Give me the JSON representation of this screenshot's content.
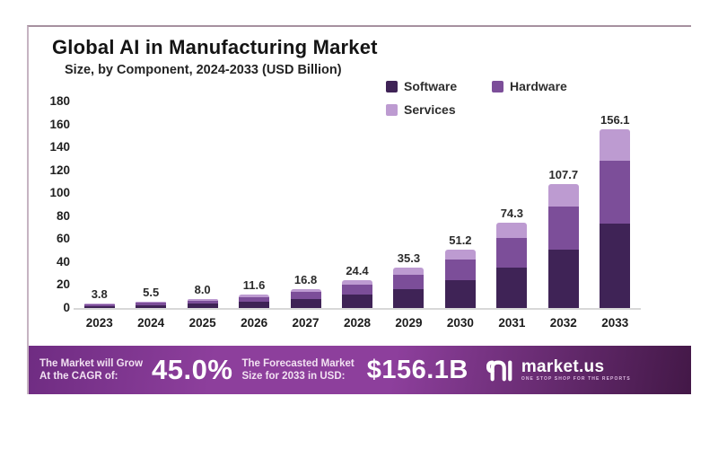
{
  "card": {
    "title": "Global AI in Manufacturing Market",
    "subtitle": "Size, by Component, 2024-2033 (USD Billion)"
  },
  "legend": [
    {
      "label": "Software",
      "color": "#3f2356"
    },
    {
      "label": "Hardware",
      "color": "#7c4e99"
    },
    {
      "label": "Services",
      "color": "#bd9bd1"
    }
  ],
  "chart_data": {
    "type": "bar",
    "stacked": true,
    "title": "Global AI in Manufacturing Market",
    "subtitle": "Size, by Component, 2024-2033 (USD Billion)",
    "xlabel": "",
    "ylabel": "USD Billion",
    "categories": [
      "2023",
      "2024",
      "2025",
      "2026",
      "2027",
      "2028",
      "2029",
      "2030",
      "2031",
      "2032",
      "2033"
    ],
    "totals": [
      "3.8",
      "5.5",
      "8.0",
      "11.6",
      "16.8",
      "24.4",
      "35.3",
      "51.2",
      "74.3",
      "107.7",
      "156.1"
    ],
    "series": [
      {
        "name": "Software",
        "color": "#3f2356",
        "values": [
          1.8,
          2.6,
          3.8,
          5.5,
          7.9,
          11.5,
          16.6,
          24.1,
          34.9,
          50.6,
          73.4
        ]
      },
      {
        "name": "Hardware",
        "color": "#7c4e99",
        "values": [
          1.3,
          1.9,
          2.8,
          4.1,
          5.9,
          8.6,
          12.5,
          18.1,
          26.2,
          38.1,
          55.1
        ]
      },
      {
        "name": "Services",
        "color": "#bd9bd1",
        "values": [
          0.7,
          1.0,
          1.4,
          2.0,
          3.0,
          4.3,
          6.2,
          9.0,
          13.2,
          19.0,
          27.6
        ]
      }
    ],
    "ylim": [
      0,
      180
    ],
    "yticks": [
      0,
      20,
      40,
      60,
      80,
      100,
      120,
      140,
      160,
      180
    ],
    "grid": false,
    "legend_position": "top-right"
  },
  "banner": {
    "cagr_label_line1": "The Market will Grow",
    "cagr_label_line2": "At the CAGR of:",
    "cagr_value": "45.0%",
    "forecast_label_line1": "The Forecasted Market",
    "forecast_label_line2": "Size for 2033 in USD:",
    "forecast_value": "$156.1B",
    "brand": "market.us",
    "brand_tagline": "ONE STOP SHOP FOR THE REPORTS",
    "colors": {
      "left": "#6f2c82",
      "mid": "#8d3f9c",
      "right": "#431847"
    }
  }
}
